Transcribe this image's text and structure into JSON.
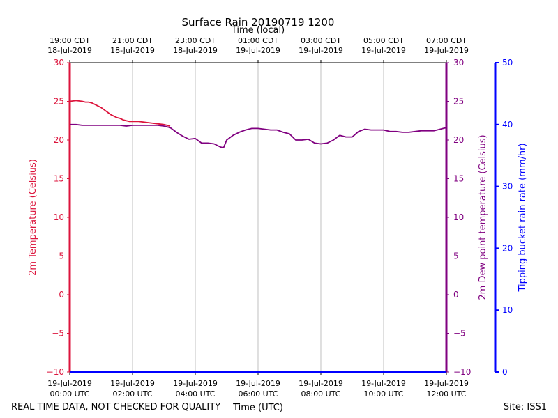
{
  "chart_data": {
    "type": "line",
    "title": "Surface Rain 20190719 1200",
    "top_axis_label": "Time (local)",
    "xlabel": "Time (UTC)",
    "ylabel_left": "2m Temperature (Celsius)",
    "ylabel_right_dew": "2m Dew point temperature (Celsius)",
    "ylabel_right_rain": "Tipping bucket rain rate (mm/hr)",
    "footer_left": "REAL TIME DATA, NOT CHECKED FOR QUALITY",
    "footer_right": "Site: ISS1",
    "xlim_hours": [
      0,
      12
    ],
    "ylim_temp": [
      -10,
      30
    ],
    "ylim_rain": [
      0,
      50
    ],
    "temp_ticks": [
      "30",
      "25",
      "20",
      "15",
      "10",
      "5",
      "0",
      "−5",
      "−10"
    ],
    "temp_tick_values": [
      30,
      25,
      20,
      15,
      10,
      5,
      0,
      -5,
      -10
    ],
    "rain_ticks": [
      "50",
      "40",
      "30",
      "20",
      "10",
      "0"
    ],
    "rain_tick_values": [
      50,
      40,
      30,
      20,
      10,
      0
    ],
    "x_ticks_utc": [
      {
        "hour": 0,
        "line1": "19-Jul-2019",
        "line2": "00:00 UTC"
      },
      {
        "hour": 2,
        "line1": "19-Jul-2019",
        "line2": "02:00 UTC"
      },
      {
        "hour": 4,
        "line1": "19-Jul-2019",
        "line2": "04:00 UTC"
      },
      {
        "hour": 6,
        "line1": "19-Jul-2019",
        "line2": "06:00 UTC"
      },
      {
        "hour": 8,
        "line1": "19-Jul-2019",
        "line2": "08:00 UTC"
      },
      {
        "hour": 10,
        "line1": "19-Jul-2019",
        "line2": "10:00 UTC"
      },
      {
        "hour": 12,
        "line1": "19-Jul-2019",
        "line2": "12:00 UTC"
      }
    ],
    "x_ticks_local": [
      {
        "hour": 0,
        "line1": "19:00 CDT",
        "line2": "18-Jul-2019"
      },
      {
        "hour": 2,
        "line1": "21:00 CDT",
        "line2": "18-Jul-2019"
      },
      {
        "hour": 4,
        "line1": "23:00 CDT",
        "line2": "18-Jul-2019"
      },
      {
        "hour": 6,
        "line1": "01:00 CDT",
        "line2": "19-Jul-2019"
      },
      {
        "hour": 8,
        "line1": "03:00 CDT",
        "line2": "19-Jul-2019"
      },
      {
        "hour": 10,
        "line1": "05:00 CDT",
        "line2": "19-Jul-2019"
      },
      {
        "hour": 12,
        "line1": "07:00 CDT",
        "line2": "19-Jul-2019"
      }
    ],
    "series": [
      {
        "name": "2m Temperature",
        "color": "#dc143c",
        "x": [
          0,
          0.2,
          0.4,
          0.5,
          0.6,
          0.7,
          0.8,
          0.9,
          1.0,
          1.1,
          1.2,
          1.3,
          1.4,
          1.5,
          1.6,
          1.7,
          1.8,
          1.9,
          2.0,
          2.2,
          2.4,
          2.6,
          2.8,
          3.0,
          3.1,
          3.2
        ],
        "values": [
          25.0,
          25.1,
          25.0,
          24.9,
          24.9,
          24.8,
          24.6,
          24.4,
          24.2,
          23.9,
          23.6,
          23.3,
          23.1,
          22.9,
          22.8,
          22.6,
          22.5,
          22.4,
          22.4,
          22.4,
          22.3,
          22.2,
          22.1,
          22.0,
          21.9,
          21.8
        ]
      },
      {
        "name": "2m Dew point temperature",
        "color": "#800080",
        "x": [
          0,
          0.2,
          0.4,
          0.6,
          0.8,
          1.0,
          1.2,
          1.4,
          1.6,
          1.8,
          2.0,
          2.2,
          2.4,
          2.6,
          2.8,
          3.0,
          3.2,
          3.4,
          3.6,
          3.8,
          4.0,
          4.2,
          4.4,
          4.6,
          4.8,
          4.9,
          5.0,
          5.1,
          5.2,
          5.4,
          5.6,
          5.8,
          6.0,
          6.2,
          6.4,
          6.6,
          6.8,
          7.0,
          7.2,
          7.4,
          7.6,
          7.8,
          8.0,
          8.2,
          8.4,
          8.6,
          8.8,
          9.0,
          9.2,
          9.4,
          9.6,
          9.8,
          10.0,
          10.2,
          10.4,
          10.6,
          10.8,
          11.0,
          11.2,
          11.4,
          11.6,
          11.8,
          12.0
        ],
        "values": [
          22.0,
          22.0,
          21.9,
          21.9,
          21.9,
          21.9,
          21.9,
          21.9,
          21.9,
          21.8,
          21.9,
          21.9,
          21.9,
          21.9,
          21.9,
          21.8,
          21.6,
          21.0,
          20.5,
          20.1,
          20.2,
          19.6,
          19.6,
          19.5,
          19.1,
          19.0,
          20.0,
          20.3,
          20.6,
          21.0,
          21.3,
          21.5,
          21.5,
          21.4,
          21.3,
          21.3,
          21.0,
          20.8,
          20.0,
          20.0,
          20.1,
          19.6,
          19.5,
          19.6,
          20.0,
          20.6,
          20.4,
          20.4,
          21.1,
          21.4,
          21.3,
          21.3,
          21.3,
          21.1,
          21.1,
          21.0,
          21.0,
          21.1,
          21.2,
          21.2,
          21.2,
          21.4,
          21.6
        ]
      },
      {
        "name": "Tipping bucket rain rate",
        "color": "#0000ff",
        "x": [
          0,
          12
        ],
        "values": [
          0,
          0
        ]
      }
    ]
  }
}
